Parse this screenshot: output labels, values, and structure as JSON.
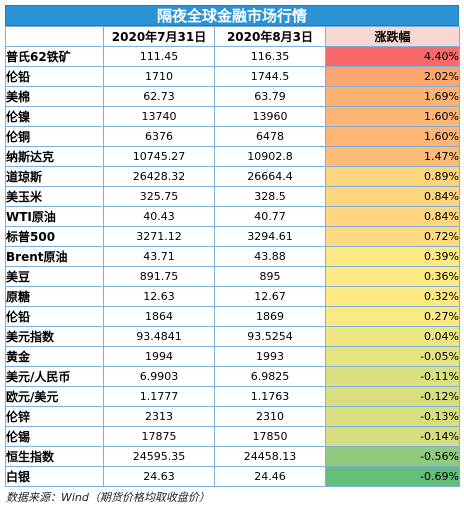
{
  "title": "隔夜全球金融市场行情",
  "columns": [
    "",
    "2020年7月31日",
    "2020年8月3日",
    "涨跌幅"
  ],
  "rows": [
    {
      "name": "普氏62铁矿",
      "v1": "111.45",
      "v2": "116.35",
      "chg": "4.40%",
      "color": "#f8696b"
    },
    {
      "name": "伦铅",
      "v1": "1710",
      "v2": "1744.5",
      "chg": "2.02%",
      "color": "#fba56f"
    },
    {
      "name": "美棉",
      "v1": "62.73",
      "v2": "63.79",
      "chg": "1.69%",
      "color": "#fbb274"
    },
    {
      "name": "伦镍",
      "v1": "13740",
      "v2": "13960",
      "chg": "1.60%",
      "color": "#fcb575"
    },
    {
      "name": "伦铜",
      "v1": "6376",
      "v2": "6478",
      "chg": "1.60%",
      "color": "#fcb575"
    },
    {
      "name": "纳斯达克",
      "v1": "10745.27",
      "v2": "10902.8",
      "chg": "1.47%",
      "color": "#fcbb77"
    },
    {
      "name": "道琼斯",
      "v1": "26428.32",
      "v2": "26664.4",
      "chg": "0.89%",
      "color": "#fed47f"
    },
    {
      "name": "美玉米",
      "v1": "325.75",
      "v2": "328.5",
      "chg": "0.84%",
      "color": "#fed680"
    },
    {
      "name": "WTI原油",
      "v1": "40.43",
      "v2": "40.77",
      "chg": "0.84%",
      "color": "#fed680"
    },
    {
      "name": "标普500",
      "v1": "3271.12",
      "v2": "3294.61",
      "chg": "0.72%",
      "color": "#fedb81"
    },
    {
      "name": "Brent原油",
      "v1": "43.71",
      "v2": "43.88",
      "chg": "0.39%",
      "color": "#fee883"
    },
    {
      "name": "美豆",
      "v1": "891.75",
      "v2": "895",
      "chg": "0.36%",
      "color": "#fee983"
    },
    {
      "name": "原糖",
      "v1": "12.63",
      "v2": "12.67",
      "chg": "0.32%",
      "color": "#fdea83"
    },
    {
      "name": "伦铅",
      "v1": "1864",
      "v2": "1869",
      "chg": "0.27%",
      "color": "#fbea83"
    },
    {
      "name": "美元指数",
      "v1": "93.4841",
      "v2": "93.5254",
      "chg": "0.04%",
      "color": "#eee683"
    },
    {
      "name": "黄金",
      "v1": "1994",
      "v2": "1993",
      "chg": "-0.05%",
      "color": "#e6e482"
    },
    {
      "name": "美元/人民币",
      "v1": "6.9903",
      "v2": "6.9825",
      "chg": "-0.11%",
      "color": "#dbe081"
    },
    {
      "name": "欧元/美元",
      "v1": "1.1777",
      "v2": "1.1763",
      "chg": "-0.12%",
      "color": "#d9df81"
    },
    {
      "name": "伦锌",
      "v1": "2313",
      "v2": "2310",
      "chg": "-0.13%",
      "color": "#d7df81"
    },
    {
      "name": "伦锡",
      "v1": "17875",
      "v2": "17850",
      "chg": "-0.14%",
      "color": "#d5de81"
    },
    {
      "name": "恒生指数",
      "v1": "24595.35",
      "v2": "24458.13",
      "chg": "-0.56%",
      "color": "#8fca7d"
    },
    {
      "name": "白银",
      "v1": "24.63",
      "v2": "24.46",
      "chg": "-0.69%",
      "color": "#63be7b"
    }
  ],
  "footer": "数据来源：Wind（期货价格均取收盘价）"
}
